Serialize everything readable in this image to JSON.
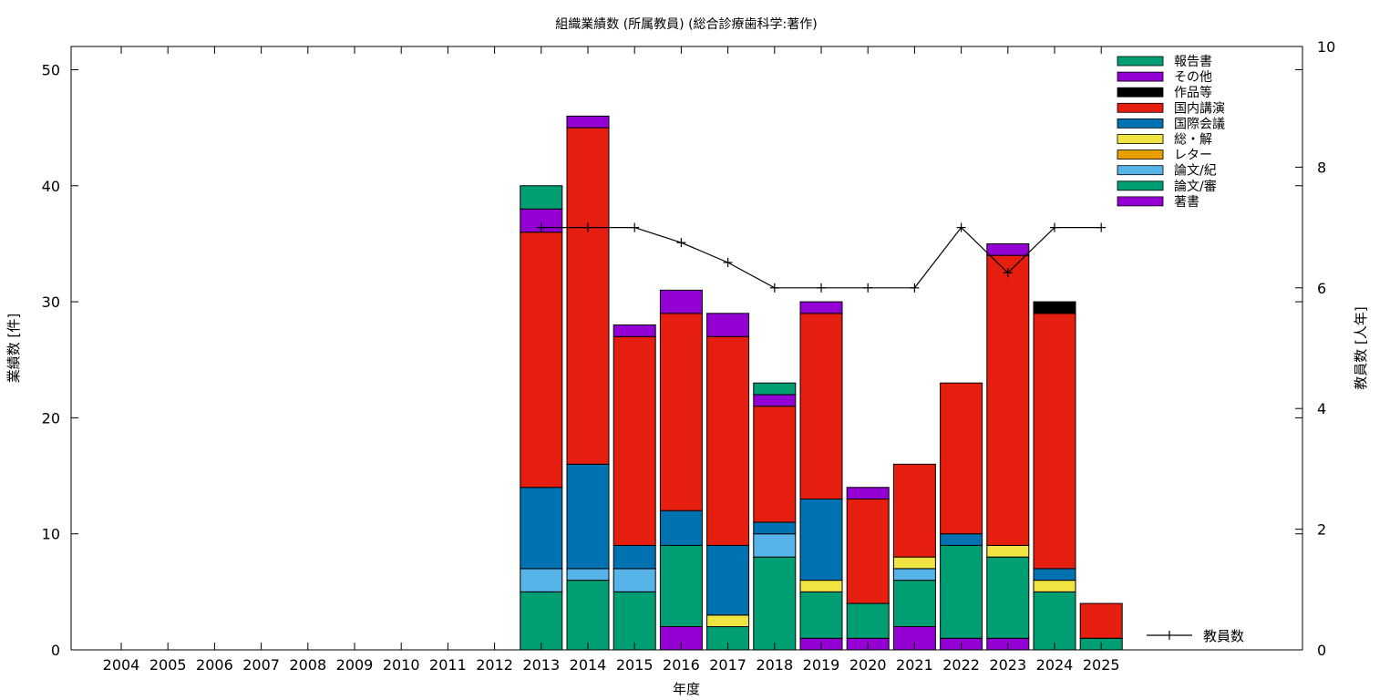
{
  "chart_data": {
    "type": "bar",
    "stacked": true,
    "title": "組織業績数 (所属教員) (総合診療歯科学:著作)",
    "xlabel": "年度",
    "ylabel": "業績数 [件]",
    "y2label": "教員数 [人年]",
    "ylim": [
      0,
      52
    ],
    "y2lim": [
      0,
      10
    ],
    "yticks": [
      0,
      10,
      20,
      30,
      40,
      50
    ],
    "y2ticks": [
      0,
      2,
      4,
      6,
      8,
      10
    ],
    "grid": false,
    "legend_position": "top-right",
    "categories": [
      "2004",
      "2005",
      "2006",
      "2007",
      "2008",
      "2009",
      "2010",
      "2011",
      "2012",
      "2013",
      "2014",
      "2015",
      "2016",
      "2017",
      "2018",
      "2019",
      "2020",
      "2021",
      "2022",
      "2023",
      "2024",
      "2025"
    ],
    "series": [
      {
        "name": "著書",
        "color": "#9400d3",
        "values": [
          0,
          0,
          0,
          0,
          0,
          0,
          0,
          0,
          0,
          0,
          0,
          0,
          2,
          0,
          0,
          1,
          1,
          2,
          1,
          1,
          0,
          0
        ]
      },
      {
        "name": "論文/審",
        "color": "#009e73",
        "values": [
          0,
          0,
          0,
          0,
          0,
          0,
          0,
          0,
          0,
          5,
          6,
          5,
          7,
          2,
          8,
          4,
          3,
          4,
          8,
          7,
          5,
          1
        ]
      },
      {
        "name": "論文/紀",
        "color": "#56b4e9",
        "values": [
          0,
          0,
          0,
          0,
          0,
          0,
          0,
          0,
          0,
          2,
          1,
          2,
          0,
          0,
          2,
          0,
          0,
          1,
          0,
          0,
          0,
          0
        ]
      },
      {
        "name": "レター",
        "color": "#e69f00",
        "values": [
          0,
          0,
          0,
          0,
          0,
          0,
          0,
          0,
          0,
          0,
          0,
          0,
          0,
          0,
          0,
          0,
          0,
          0,
          0,
          0,
          0,
          0
        ]
      },
      {
        "name": "総・解",
        "color": "#f0e442",
        "values": [
          0,
          0,
          0,
          0,
          0,
          0,
          0,
          0,
          0,
          0,
          0,
          0,
          0,
          1,
          0,
          1,
          0,
          1,
          0,
          1,
          1,
          0
        ]
      },
      {
        "name": "国際会議",
        "color": "#0072b2",
        "values": [
          0,
          0,
          0,
          0,
          0,
          0,
          0,
          0,
          0,
          7,
          9,
          2,
          3,
          6,
          1,
          7,
          0,
          0,
          1,
          0,
          1,
          0
        ]
      },
      {
        "name": "国内講演",
        "color": "#e51e10",
        "values": [
          0,
          0,
          0,
          0,
          0,
          0,
          0,
          0,
          0,
          22,
          29,
          18,
          17,
          18,
          10,
          16,
          9,
          8,
          13,
          25,
          22,
          3
        ]
      },
      {
        "name": "作品等",
        "color": "#000000",
        "values": [
          0,
          0,
          0,
          0,
          0,
          0,
          0,
          0,
          0,
          0,
          0,
          0,
          0,
          0,
          0,
          0,
          0,
          0,
          0,
          0,
          1,
          0
        ]
      },
      {
        "name": "その他",
        "color": "#9400d3",
        "values": [
          0,
          0,
          0,
          0,
          0,
          0,
          0,
          0,
          0,
          2,
          1,
          1,
          2,
          2,
          1,
          1,
          1,
          0,
          0,
          1,
          0,
          0
        ]
      },
      {
        "name": "報告書",
        "color": "#009e73",
        "values": [
          0,
          0,
          0,
          0,
          0,
          0,
          0,
          0,
          0,
          2,
          0,
          0,
          0,
          0,
          1,
          0,
          0,
          0,
          0,
          0,
          0,
          0
        ]
      }
    ],
    "line_series": {
      "name": "教員数",
      "axis": "y2",
      "color": "#000000",
      "x": [
        "2013",
        "2014",
        "2015",
        "2016",
        "2017",
        "2018",
        "2019",
        "2020",
        "2021",
        "2022",
        "2023",
        "2024",
        "2025"
      ],
      "values": [
        7,
        7,
        7,
        6.75,
        6.42,
        6,
        6,
        6,
        6,
        7,
        6.25,
        7,
        7
      ]
    }
  }
}
